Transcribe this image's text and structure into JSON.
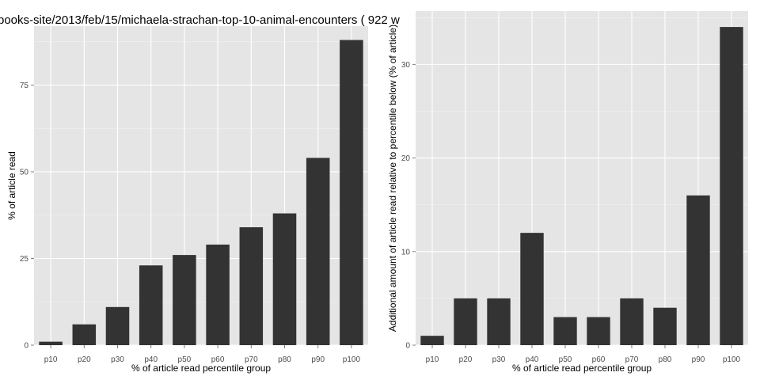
{
  "title": "books-site/2013/feb/15/michaela-strachan-top-10-animal-encounters ( 922 w",
  "chart_data": [
    {
      "type": "bar",
      "xlabel": "% of article read percentile group",
      "ylabel": "% of article read",
      "categories": [
        "p10",
        "p20",
        "p30",
        "p40",
        "p50",
        "p60",
        "p70",
        "p80",
        "p90",
        "p100"
      ],
      "values": [
        1,
        6,
        11,
        23,
        26,
        29,
        34,
        38,
        54,
        88
      ],
      "ylim": [
        0,
        92
      ],
      "yticks": [
        0,
        25,
        50,
        75
      ],
      "bar_color": "#333333",
      "panel_color": "#e5e5e5",
      "grid": true
    },
    {
      "type": "bar",
      "xlabel": "% of article read percentile group",
      "ylabel": "Additional amount of article read relative to percentile below (% of article)",
      "categories": [
        "p10",
        "p20",
        "p30",
        "p40",
        "p50",
        "p60",
        "p70",
        "p80",
        "p90",
        "p100"
      ],
      "values": [
        1,
        5,
        5,
        12,
        3,
        3,
        5,
        4,
        16,
        34
      ],
      "ylim": [
        0,
        35.7
      ],
      "yticks": [
        0,
        10,
        20,
        30
      ],
      "bar_color": "#333333",
      "panel_color": "#e5e5e5",
      "grid": true
    }
  ]
}
